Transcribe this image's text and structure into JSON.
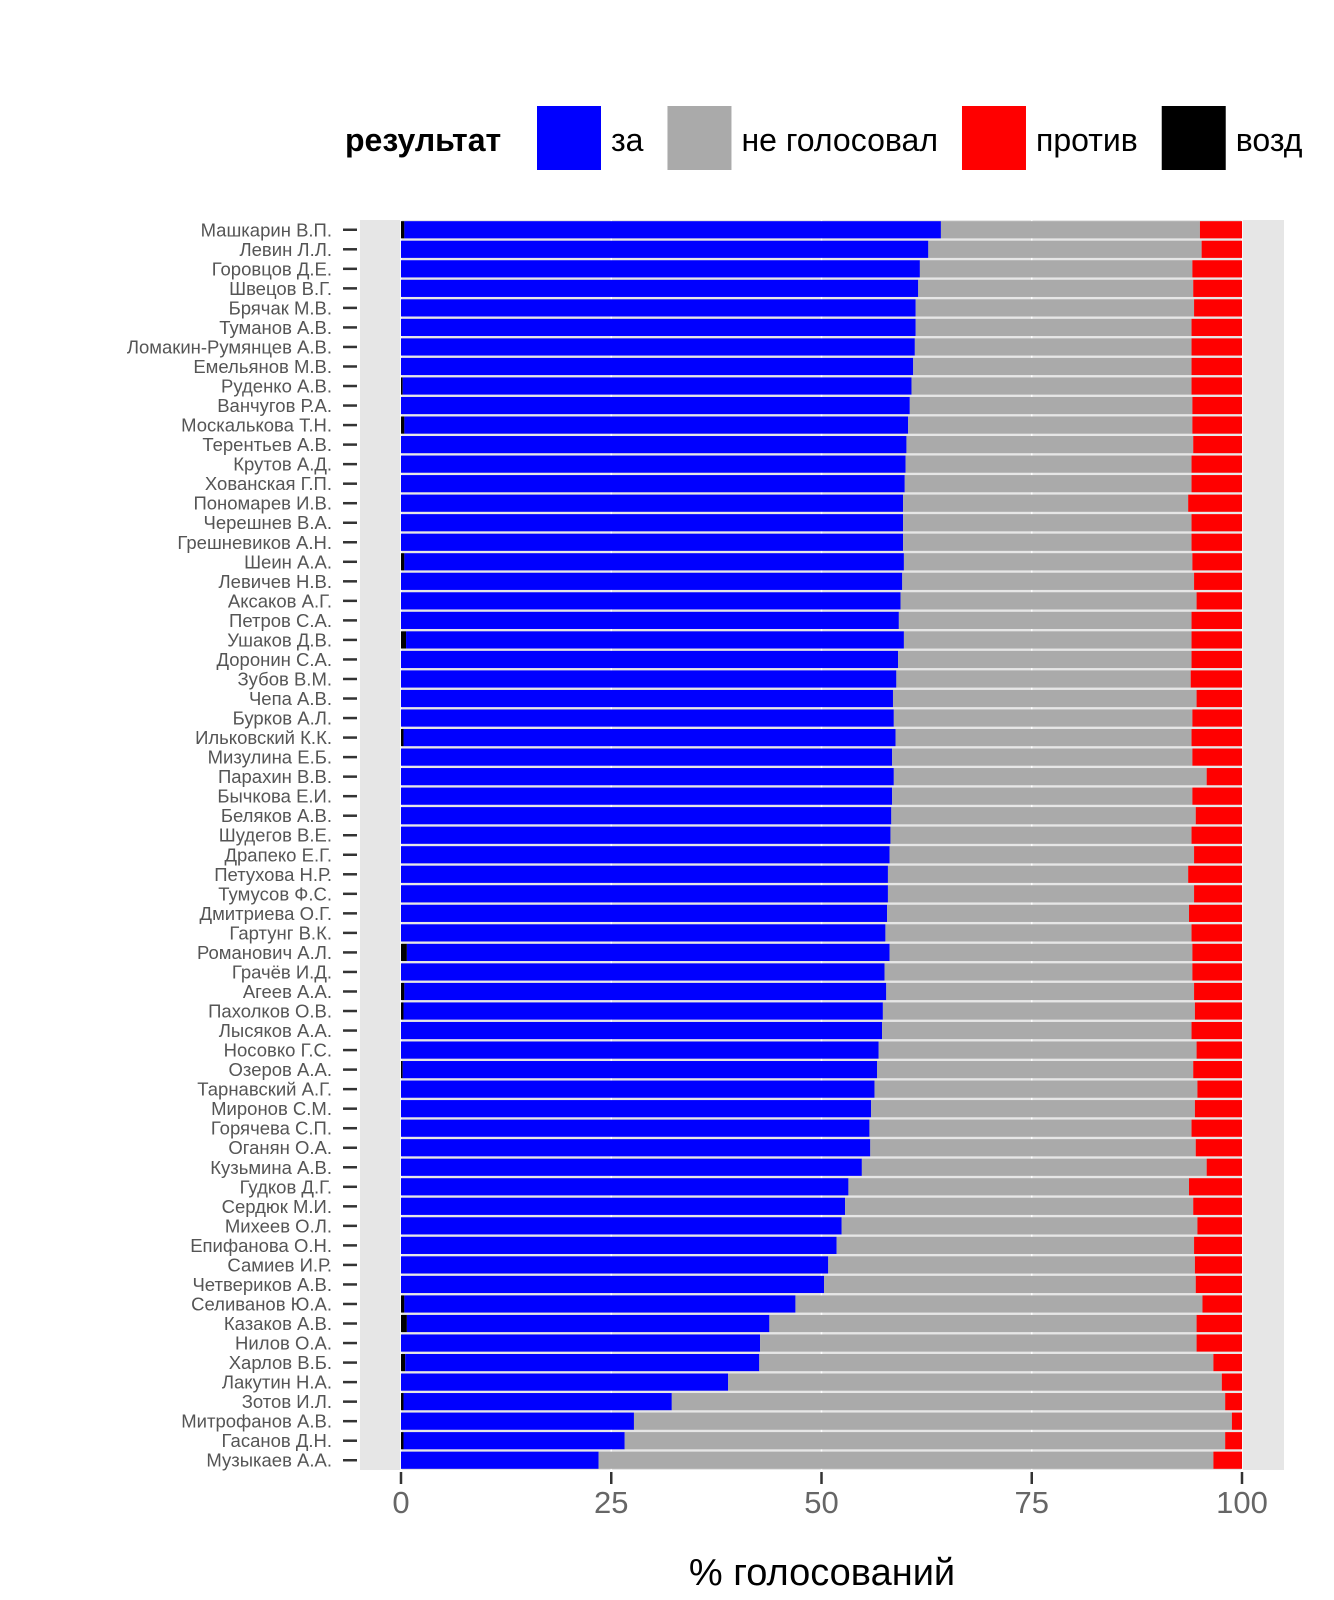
{
  "chart_data": {
    "type": "bar",
    "orientation": "horizontal-stacked",
    "xlabel": "% голосований",
    "ylabel": "",
    "xlim": [
      0,
      100
    ],
    "xticks": [
      "0",
      "25",
      "50",
      "75",
      "100"
    ],
    "xtick_values": [
      0,
      25,
      50,
      75,
      100
    ],
    "legend_title": "результат",
    "legend_position": "top",
    "grid": true,
    "series": [
      {
        "name": "возд",
        "color": "#000000"
      },
      {
        "name": "за",
        "color": "#0000ff"
      },
      {
        "name": "не голосовал",
        "color": "#aaaaaa"
      },
      {
        "name": "против",
        "color": "#ff0000"
      }
    ],
    "legend_order": [
      "за",
      "не голосовал",
      "против",
      "возд"
    ],
    "rows": [
      {
        "name": "Машкарин В.П.",
        "abst": 0.4,
        "za": 63.8,
        "ng": 30.8,
        "pr": 5.0
      },
      {
        "name": "Левин Л.Л.",
        "abst": 0.0,
        "za": 62.7,
        "ng": 32.5,
        "pr": 4.8
      },
      {
        "name": "Горовцов Д.Е.",
        "abst": 0.0,
        "za": 61.7,
        "ng": 32.4,
        "pr": 5.9
      },
      {
        "name": "Швецов В.Г.",
        "abst": 0.0,
        "za": 61.5,
        "ng": 32.7,
        "pr": 5.8
      },
      {
        "name": "Брячак М.В.",
        "abst": 0.0,
        "za": 61.2,
        "ng": 33.1,
        "pr": 5.7
      },
      {
        "name": "Туманов А.В.",
        "abst": 0.0,
        "za": 61.2,
        "ng": 32.8,
        "pr": 6.0
      },
      {
        "name": "Ломакин-Румянцев А.В.",
        "abst": 0.0,
        "za": 61.1,
        "ng": 32.9,
        "pr": 6.0
      },
      {
        "name": "Емельянов М.В.",
        "abst": 0.0,
        "za": 60.9,
        "ng": 33.1,
        "pr": 6.0
      },
      {
        "name": "Руденко А.В.",
        "abst": 0.2,
        "za": 60.5,
        "ng": 33.3,
        "pr": 6.0
      },
      {
        "name": "Ванчугов Р.А.",
        "abst": 0.0,
        "za": 60.5,
        "ng": 33.6,
        "pr": 5.9
      },
      {
        "name": "Москалькова Т.Н.",
        "abst": 0.4,
        "za": 59.9,
        "ng": 33.8,
        "pr": 5.9
      },
      {
        "name": "Терентьев А.В.",
        "abst": 0.0,
        "za": 60.1,
        "ng": 34.1,
        "pr": 5.8
      },
      {
        "name": "Крутов А.Д.",
        "abst": 0.0,
        "za": 60.0,
        "ng": 34.0,
        "pr": 6.0
      },
      {
        "name": "Хованская Г.П.",
        "abst": 0.0,
        "za": 59.9,
        "ng": 34.1,
        "pr": 6.0
      },
      {
        "name": "Пономарев И.В.",
        "abst": 0.0,
        "za": 59.7,
        "ng": 33.9,
        "pr": 6.4
      },
      {
        "name": "Черешнев В.А.",
        "abst": 0.0,
        "za": 59.7,
        "ng": 34.3,
        "pr": 6.0
      },
      {
        "name": "Грешневиков А.Н.",
        "abst": 0.0,
        "za": 59.7,
        "ng": 34.3,
        "pr": 6.0
      },
      {
        "name": "Шеин А.А.",
        "abst": 0.4,
        "za": 59.4,
        "ng": 34.3,
        "pr": 5.9
      },
      {
        "name": "Левичев Н.В.",
        "abst": 0.0,
        "za": 59.6,
        "ng": 34.7,
        "pr": 5.7
      },
      {
        "name": "Аксаков А.Г.",
        "abst": 0.0,
        "za": 59.4,
        "ng": 35.2,
        "pr": 5.4
      },
      {
        "name": "Петров С.А.",
        "abst": 0.0,
        "za": 59.2,
        "ng": 34.8,
        "pr": 6.0
      },
      {
        "name": "Ушаков Д.В.",
        "abst": 0.6,
        "za": 59.2,
        "ng": 34.2,
        "pr": 6.0
      },
      {
        "name": "Доронин С.А.",
        "abst": 0.0,
        "za": 59.1,
        "ng": 34.9,
        "pr": 6.0
      },
      {
        "name": "Зубов В.М.",
        "abst": 0.0,
        "za": 58.9,
        "ng": 35.0,
        "pr": 6.1
      },
      {
        "name": "Чепа А.В.",
        "abst": 0.0,
        "za": 58.5,
        "ng": 36.1,
        "pr": 5.4
      },
      {
        "name": "Бурков А.Л.",
        "abst": 0.0,
        "za": 58.6,
        "ng": 35.5,
        "pr": 5.9
      },
      {
        "name": "Ильковский К.К.",
        "abst": 0.3,
        "za": 58.5,
        "ng": 35.2,
        "pr": 6.0
      },
      {
        "name": "Мизулина Е.Б.",
        "abst": 0.0,
        "za": 58.4,
        "ng": 35.7,
        "pr": 5.9
      },
      {
        "name": "Парахин В.В.",
        "abst": 0.0,
        "za": 58.6,
        "ng": 37.2,
        "pr": 4.2
      },
      {
        "name": "Бычкова Е.И.",
        "abst": 0.0,
        "za": 58.4,
        "ng": 35.7,
        "pr": 5.9
      },
      {
        "name": "Беляков А.В.",
        "abst": 0.0,
        "za": 58.3,
        "ng": 36.2,
        "pr": 5.5
      },
      {
        "name": "Шудегов В.Е.",
        "abst": 0.0,
        "za": 58.2,
        "ng": 35.8,
        "pr": 6.0
      },
      {
        "name": "Драпеко Е.Г.",
        "abst": 0.0,
        "za": 58.1,
        "ng": 36.2,
        "pr": 5.7
      },
      {
        "name": "Петухова Н.Р.",
        "abst": 0.0,
        "za": 57.9,
        "ng": 35.7,
        "pr": 6.4
      },
      {
        "name": "Тумусов Ф.С.",
        "abst": 0.0,
        "za": 57.9,
        "ng": 36.4,
        "pr": 5.7
      },
      {
        "name": "Дмитриева О.Г.",
        "abst": 0.0,
        "za": 57.8,
        "ng": 35.9,
        "pr": 6.3
      },
      {
        "name": "Гартунг В.К.",
        "abst": 0.0,
        "za": 57.6,
        "ng": 36.4,
        "pr": 6.0
      },
      {
        "name": "Романович А.Л.",
        "abst": 0.7,
        "za": 57.4,
        "ng": 36.0,
        "pr": 5.9
      },
      {
        "name": "Грачёв И.Д.",
        "abst": 0.0,
        "za": 57.5,
        "ng": 36.6,
        "pr": 5.9
      },
      {
        "name": "Агеев А.А.",
        "abst": 0.4,
        "za": 57.3,
        "ng": 36.6,
        "pr": 5.7
      },
      {
        "name": "Пахолков О.В.",
        "abst": 0.3,
        "za": 57.0,
        "ng": 37.1,
        "pr": 5.6
      },
      {
        "name": "Лысяков А.А.",
        "abst": 0.0,
        "za": 57.2,
        "ng": 36.8,
        "pr": 6.0
      },
      {
        "name": "Носовко Г.С.",
        "abst": 0.0,
        "za": 56.8,
        "ng": 37.8,
        "pr": 5.4
      },
      {
        "name": "Озеров А.А.",
        "abst": 0.2,
        "za": 56.4,
        "ng": 37.6,
        "pr": 5.8
      },
      {
        "name": "Тарнавский А.Г.",
        "abst": 0.0,
        "za": 56.3,
        "ng": 38.4,
        "pr": 5.3
      },
      {
        "name": "Миронов С.М.",
        "abst": 0.0,
        "za": 55.9,
        "ng": 38.5,
        "pr": 5.6
      },
      {
        "name": "Горячева С.П.",
        "abst": 0.0,
        "za": 55.7,
        "ng": 38.3,
        "pr": 6.0
      },
      {
        "name": "Оганян О.А.",
        "abst": 0.0,
        "za": 55.8,
        "ng": 38.7,
        "pr": 5.5
      },
      {
        "name": "Кузьмина А.В.",
        "abst": 0.0,
        "za": 54.8,
        "ng": 41.0,
        "pr": 4.2
      },
      {
        "name": "Гудков Д.Г.",
        "abst": 0.0,
        "za": 53.2,
        "ng": 40.5,
        "pr": 6.3
      },
      {
        "name": "Сердюк М.И.",
        "abst": 0.0,
        "za": 52.8,
        "ng": 41.4,
        "pr": 5.8
      },
      {
        "name": "Михеев О.Л.",
        "abst": 0.0,
        "za": 52.4,
        "ng": 42.3,
        "pr": 5.3
      },
      {
        "name": "Епифанова О.Н.",
        "abst": 0.0,
        "za": 51.8,
        "ng": 42.5,
        "pr": 5.7
      },
      {
        "name": "Самиев И.Р.",
        "abst": 0.0,
        "za": 50.8,
        "ng": 43.6,
        "pr": 5.6
      },
      {
        "name": "Четвериков А.В.",
        "abst": 0.0,
        "za": 50.3,
        "ng": 44.2,
        "pr": 5.5
      },
      {
        "name": "Селиванов Ю.А.",
        "abst": 0.4,
        "za": 46.5,
        "ng": 48.4,
        "pr": 4.7
      },
      {
        "name": "Казаков А.В.",
        "abst": 0.7,
        "za": 43.1,
        "ng": 50.8,
        "pr": 5.4
      },
      {
        "name": "Нилов О.А.",
        "abst": 0.0,
        "za": 42.7,
        "ng": 51.9,
        "pr": 5.4
      },
      {
        "name": "Харлов В.Б.",
        "abst": 0.5,
        "za": 42.1,
        "ng": 54.0,
        "pr": 3.4
      },
      {
        "name": "Лакутин Н.А.",
        "abst": 0.0,
        "za": 38.9,
        "ng": 58.7,
        "pr": 2.4
      },
      {
        "name": "Зотов И.Л.",
        "abst": 0.3,
        "za": 31.9,
        "ng": 65.8,
        "pr": 2.0
      },
      {
        "name": "Митрофанов А.В.",
        "abst": 0.0,
        "za": 27.7,
        "ng": 71.1,
        "pr": 1.2
      },
      {
        "name": "Гасанов Д.Н.",
        "abst": 0.3,
        "za": 26.3,
        "ng": 71.4,
        "pr": 2.0
      },
      {
        "name": "Музыкаев А.А.",
        "abst": 0.0,
        "za": 23.5,
        "ng": 73.1,
        "pr": 3.4
      }
    ]
  }
}
